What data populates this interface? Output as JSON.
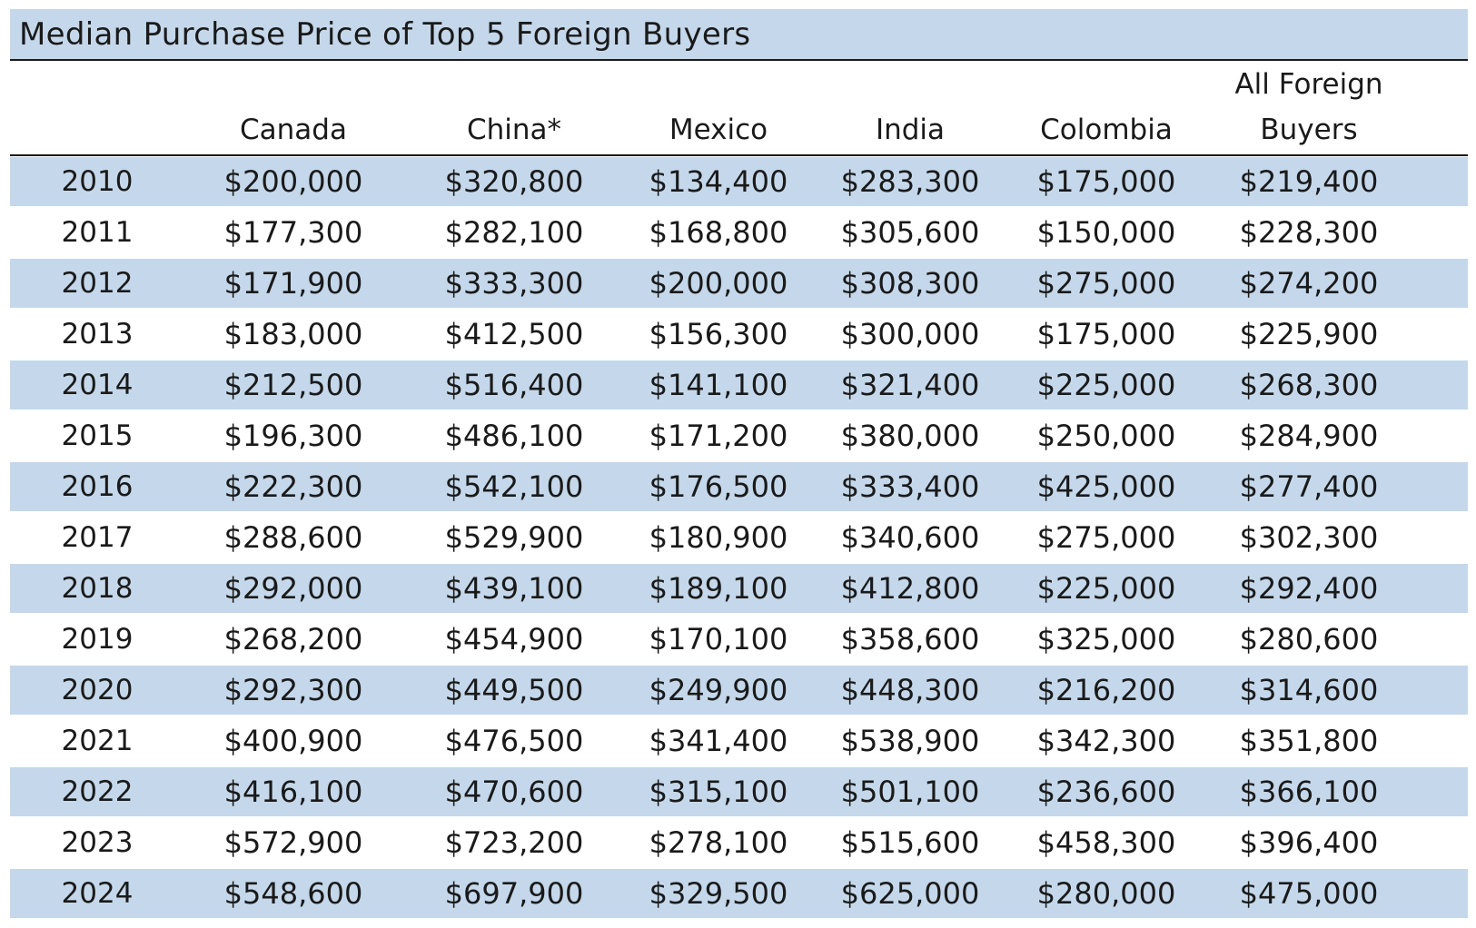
{
  "chart_data": {
    "type": "table",
    "title": "Median Purchase Price of Top 5 Foreign Buyers",
    "columns": [
      {
        "line1": "",
        "line2": ""
      },
      {
        "line1": "",
        "line2": "Canada"
      },
      {
        "line1": "",
        "line2": "China*"
      },
      {
        "line1": "",
        "line2": "Mexico"
      },
      {
        "line1": "",
        "line2": "India"
      },
      {
        "line1": "",
        "line2": "Colombia"
      },
      {
        "line1": "All Foreign",
        "line2": "Buyers"
      }
    ],
    "rows": [
      [
        "2010",
        "$200,000",
        "$320,800",
        "$134,400",
        "$283,300",
        "$175,000",
        "$219,400"
      ],
      [
        "2011",
        "$177,300",
        "$282,100",
        "$168,800",
        "$305,600",
        "$150,000",
        "$228,300"
      ],
      [
        "2012",
        "$171,900",
        "$333,300",
        "$200,000",
        "$308,300",
        "$275,000",
        "$274,200"
      ],
      [
        "2013",
        "$183,000",
        "$412,500",
        "$156,300",
        "$300,000",
        "$175,000",
        "$225,900"
      ],
      [
        "2014",
        "$212,500",
        "$516,400",
        "$141,100",
        "$321,400",
        "$225,000",
        "$268,300"
      ],
      [
        "2015",
        "$196,300",
        "$486,100",
        "$171,200",
        "$380,000",
        "$250,000",
        "$284,900"
      ],
      [
        "2016",
        "$222,300",
        "$542,100",
        "$176,500",
        "$333,400",
        "$425,000",
        "$277,400"
      ],
      [
        "2017",
        "$288,600",
        "$529,900",
        "$180,900",
        "$340,600",
        "$275,000",
        "$302,300"
      ],
      [
        "2018",
        "$292,000",
        "$439,100",
        "$189,100",
        "$412,800",
        "$225,000",
        "$292,400"
      ],
      [
        "2019",
        "$268,200",
        "$454,900",
        "$170,100",
        "$358,600",
        "$325,000",
        "$280,600"
      ],
      [
        "2020",
        "$292,300",
        "$449,500",
        "$249,900",
        "$448,300",
        "$216,200",
        "$314,600"
      ],
      [
        "2021",
        "$400,900",
        "$476,500",
        "$341,400",
        "$538,900",
        "$342,300",
        "$351,800"
      ],
      [
        "2022",
        "$416,100",
        "$470,600",
        "$315,100",
        "$501,100",
        "$236,600",
        "$366,100"
      ],
      [
        "2023",
        "$572,900",
        "$723,200",
        "$278,100",
        "$515,600",
        "$458,300",
        "$396,400"
      ],
      [
        "2024",
        "$548,600",
        "$697,900",
        "$329,500",
        "$625,000",
        "$280,000",
        "$475,000"
      ]
    ],
    "colors": {
      "band": "#c5d8eb",
      "text": "#1a1a1a",
      "rule": "#1a1a1a"
    }
  }
}
